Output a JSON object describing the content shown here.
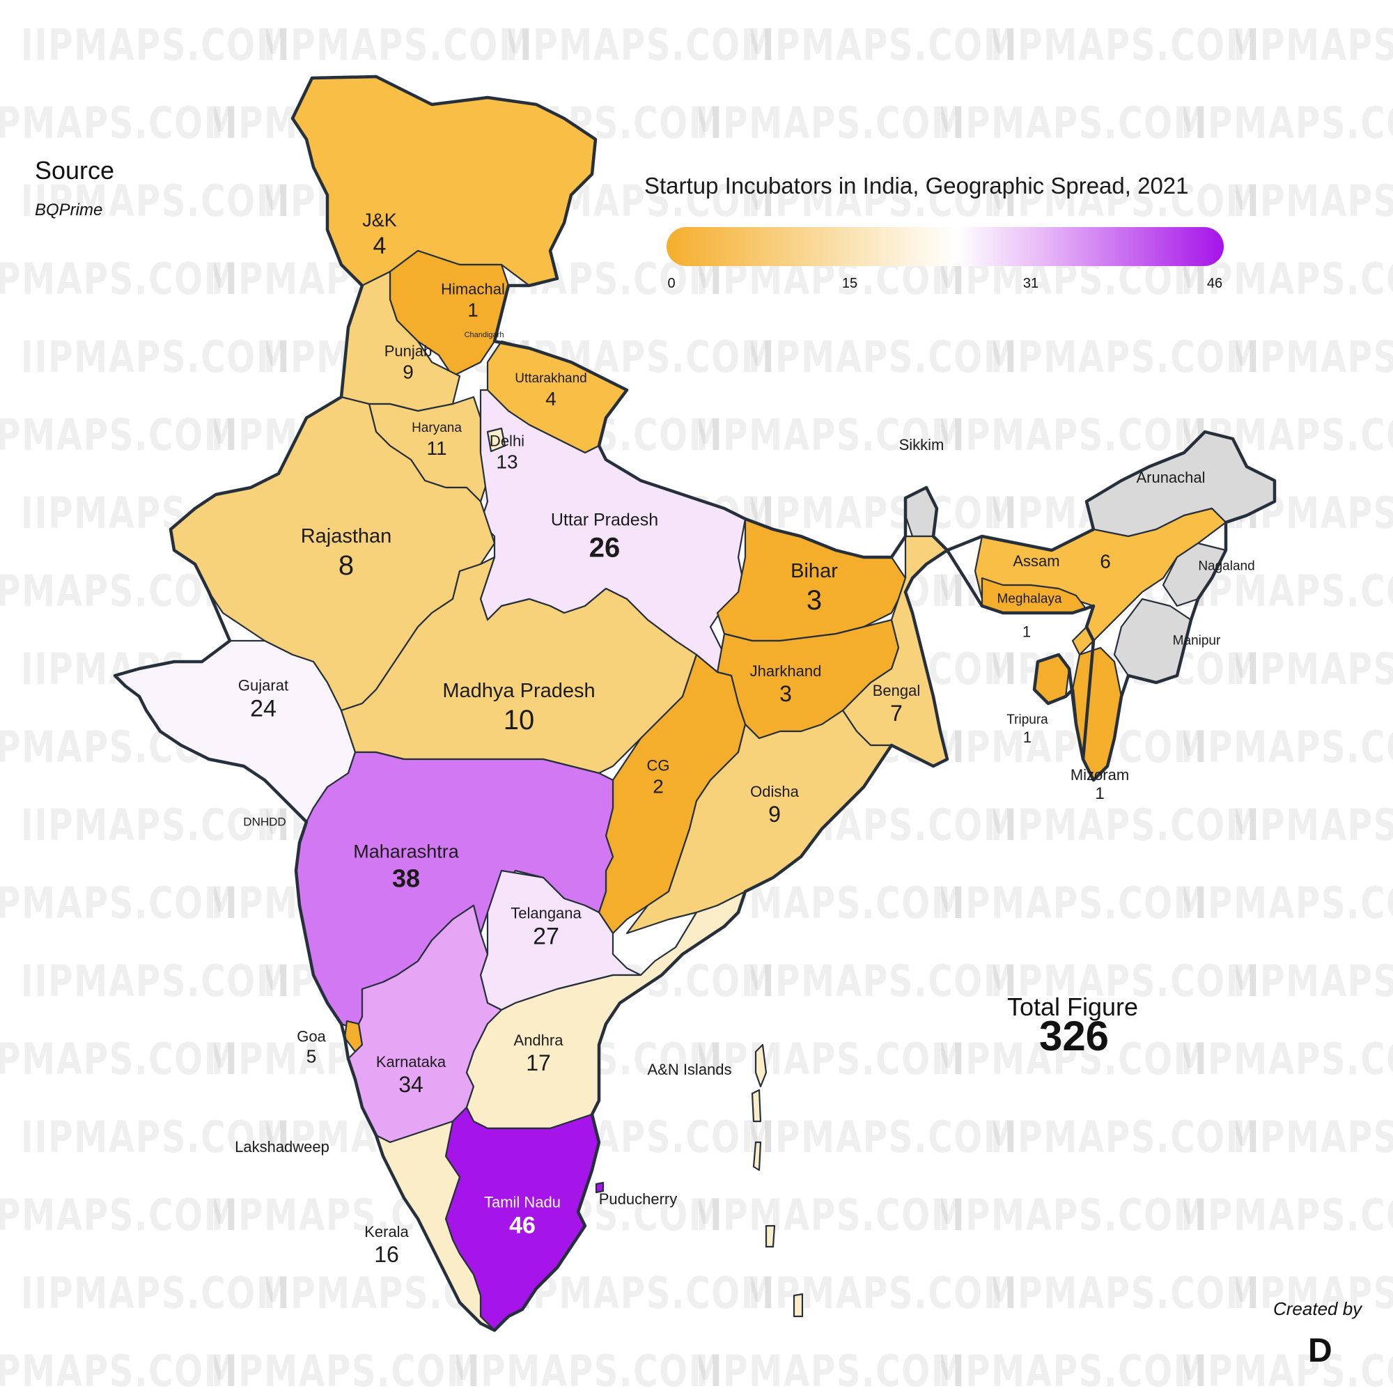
{
  "title": "Startup Incubators in India, Geographic Spread, 2021",
  "source": {
    "heading": "Source",
    "name": "BQPrime"
  },
  "legend": {
    "ticks": [
      "0",
      "15",
      "31",
      "46"
    ],
    "min": 0,
    "max": 46,
    "colors": {
      "low": "#f5ae2c",
      "mid": "#ffffff",
      "high": "#a514e8"
    }
  },
  "total": {
    "label": "Total Figure",
    "value": "326"
  },
  "credit": {
    "label": "Created by",
    "logo": "D"
  },
  "watermark": "IIPMAPS.COM",
  "colors": {
    "no_data": "#d9d9d9",
    "border": "#26303c",
    "c1": "#f5ae2c",
    "c2": "#f8be45",
    "c3": "#f8d27a",
    "c4": "#fbedc7",
    "c5": "#f6e4fb",
    "c6": "#faf4fd",
    "c7": "#e7a6f5",
    "c8": "#d278f3",
    "c9": "#a514e8"
  },
  "regions": {
    "jk": {
      "name": "J&K",
      "value": "4"
    },
    "himachal": {
      "name": "Himachal",
      "value": "1"
    },
    "chandigarh": {
      "name": "Chandigarh"
    },
    "punjab": {
      "name": "Punjab",
      "value": "9"
    },
    "uttarakhand": {
      "name": "Uttarakhand",
      "value": "4"
    },
    "haryana": {
      "name": "Haryana",
      "value": "11"
    },
    "delhi": {
      "name": "Delhi",
      "value": "13"
    },
    "rajasthan": {
      "name": "Rajasthan",
      "value": "8"
    },
    "up": {
      "name": "Uttar Pradesh",
      "value": "26"
    },
    "bihar": {
      "name": "Bihar",
      "value": "3"
    },
    "sikkim": {
      "name": "Sikkim"
    },
    "arunachal": {
      "name": "Arunachal"
    },
    "assam": {
      "name": "Assam",
      "value": "6"
    },
    "nagaland": {
      "name": "Nagaland"
    },
    "meghalaya": {
      "name": "Meghalaya",
      "value": "1"
    },
    "manipur": {
      "name": "Manipur"
    },
    "tripura": {
      "name": "Tripura",
      "value": "1"
    },
    "mizoram": {
      "name": "Mizoram",
      "value": "1"
    },
    "gujarat": {
      "name": "Gujarat",
      "value": "24"
    },
    "mp": {
      "name": "Madhya Pradesh",
      "value": "10"
    },
    "jharkhand": {
      "name": "Jharkhand",
      "value": "3"
    },
    "bengal": {
      "name": "Bengal",
      "value": "7"
    },
    "dnhdd": {
      "name": "DNHDD"
    },
    "cg": {
      "name": "CG",
      "value": "2"
    },
    "odisha": {
      "name": "Odisha",
      "value": "9"
    },
    "maharashtra": {
      "name": "Maharashtra",
      "value": "38"
    },
    "telangana": {
      "name": "Telangana",
      "value": "27"
    },
    "goa": {
      "name": "Goa",
      "value": "5"
    },
    "karnataka": {
      "name": "Karnataka",
      "value": "34"
    },
    "andhra": {
      "name": "Andhra",
      "value": "17"
    },
    "an_islands": {
      "name": "A&N Islands"
    },
    "lakshadweep": {
      "name": "Lakshadweep"
    },
    "puducherry": {
      "name": "Puducherry"
    },
    "tamilnadu": {
      "name": "Tamil Nadu",
      "value": "46"
    },
    "kerala": {
      "name": "Kerala",
      "value": "16"
    }
  }
}
